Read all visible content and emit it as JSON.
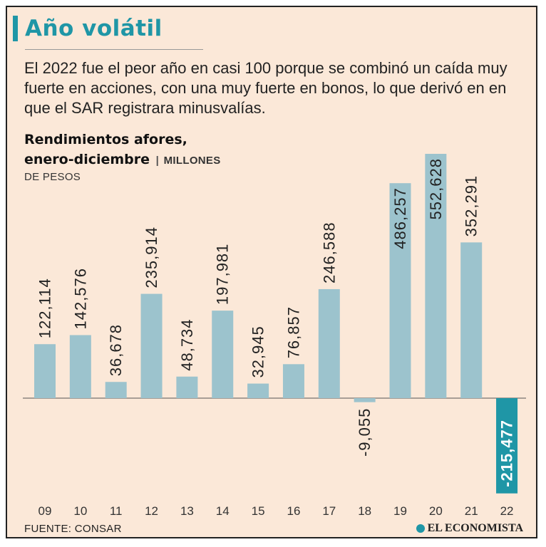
{
  "header": {
    "title": "Año volátil",
    "subtitle": "El 2022 fue el peor año en casi 100 porque se combinó un caída muy fuerte en acciones, con una muy fuerte en bonos, lo que derivó en en que el SAR registrara minusvalías."
  },
  "chart_heading": {
    "title_line1": "Rendimientos afores,",
    "title_line2": "enero-diciembre",
    "separator": "|",
    "units_part1": "MILLONES",
    "units_part2": "DE PESOS"
  },
  "chart_data": {
    "type": "bar",
    "title": "Rendimientos afores, enero-diciembre",
    "ylabel": "MILLONES DE PESOS",
    "xlabel": "",
    "categories": [
      "09",
      "10",
      "11",
      "12",
      "13",
      "14",
      "15",
      "16",
      "17",
      "18",
      "19",
      "20",
      "21",
      "22"
    ],
    "values": [
      122114,
      142576,
      36678,
      235914,
      48734,
      197981,
      32945,
      76857,
      246588,
      -9055,
      486257,
      552628,
      352291,
      -215477
    ],
    "value_labels": [
      "122,114",
      "142,576",
      "36,678",
      "235,914",
      "48,734",
      "197,981",
      "32,945",
      "76,857",
      "246,588",
      "-9,055",
      "486,257",
      "552,628",
      "352,291",
      "-215,477"
    ],
    "ylim": [
      -215477,
      552628
    ],
    "grid": false,
    "highlight_index": 13
  },
  "colors": {
    "bar": "#9cc3cd",
    "highlight_bar": "#1f96a6",
    "label": "#222222",
    "highlight_label": "#ffffff",
    "accent": "#1f96a6",
    "background": "#fbe8d8"
  },
  "footer": {
    "source": "FUENTE: CONSAR",
    "brand": "EL ECONOMISTA",
    "brand_icon": "el-economista-logo-icon"
  }
}
